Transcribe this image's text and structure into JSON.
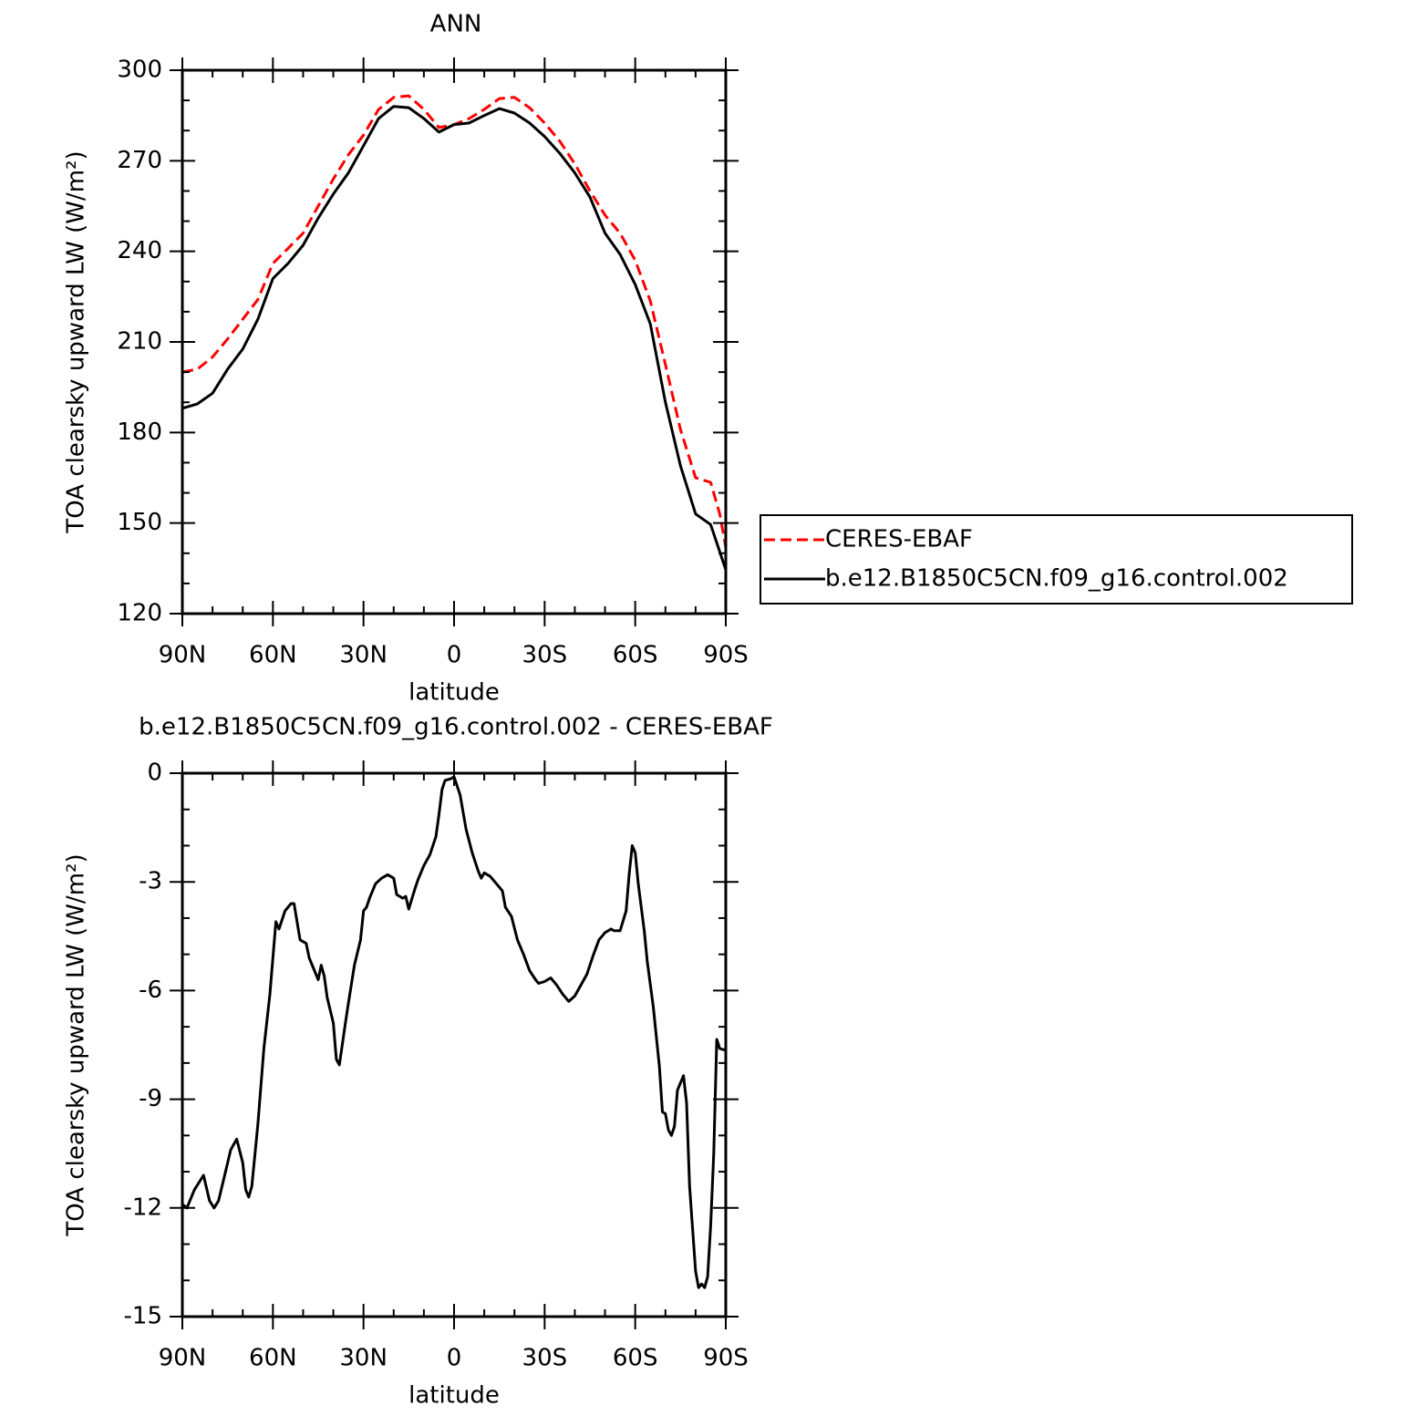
{
  "chart_data": [
    {
      "type": "line",
      "title": "ANN",
      "xlabel": "latitude",
      "ylabel": "TOA clearsky upward LW (W/m²)",
      "x": [
        90,
        85,
        80,
        75,
        70,
        65,
        60,
        55,
        50,
        45,
        40,
        35,
        30,
        25,
        20,
        15,
        10,
        5,
        0,
        -5,
        -10,
        -15,
        -20,
        -25,
        -30,
        -35,
        -40,
        -45,
        -50,
        -55,
        -60,
        -65,
        -70,
        -75,
        -80,
        -85,
        -88,
        -90
      ],
      "series": [
        {
          "name": "CERES-EBAF",
          "color": "#ff0000",
          "style": "dashed",
          "values": [
            200,
            201,
            205,
            211,
            217.5,
            224,
            236,
            241,
            246,
            255,
            264,
            272,
            278.5,
            287,
            291,
            291.5,
            287,
            281,
            282,
            284,
            287,
            290.6,
            291,
            287.6,
            282.5,
            276.5,
            269,
            260,
            252,
            246,
            237,
            223.6,
            202.5,
            181,
            165,
            163.5,
            153,
            142
          ]
        },
        {
          "name": "b.e12.B1850C5CN.f09_g16.control.002",
          "color": "#000000",
          "style": "solid",
          "values": [
            188,
            189.5,
            193,
            201,
            207.6,
            217.5,
            231,
            236,
            242,
            251,
            259,
            266,
            275,
            284,
            288,
            287.6,
            284,
            279.5,
            282,
            282.5,
            285,
            287.3,
            285.8,
            282.5,
            278,
            272.5,
            266,
            258,
            246,
            239,
            229,
            216,
            190,
            169,
            153,
            149.5,
            140.5,
            134.5
          ]
        }
      ],
      "xlim": [
        90,
        -90
      ],
      "xticks": [
        {
          "value": 90,
          "label": "90N"
        },
        {
          "value": 60,
          "label": "60N"
        },
        {
          "value": 30,
          "label": "30N"
        },
        0,
        {
          "value": -30,
          "label": "30S"
        },
        {
          "value": -60,
          "label": "60S"
        },
        {
          "value": -90,
          "label": "90S"
        }
      ],
      "minor_xticks": [
        80,
        70,
        50,
        40,
        20,
        10,
        -10,
        -20,
        -40,
        -50,
        -70,
        -80
      ],
      "ylim": [
        120,
        300
      ],
      "yticks": [
        120,
        150,
        180,
        210,
        240,
        270,
        300
      ],
      "minor_yticks": [
        130,
        140,
        160,
        170,
        190,
        200,
        220,
        230,
        250,
        260,
        280,
        290
      ],
      "legend": "outside-right"
    },
    {
      "type": "line",
      "title": "b.e12.B1850C5CN.f09_g16.control.002 - CERES-EBAF",
      "xlabel": "latitude",
      "ylabel": "TOA clearsky upward LW (W/m²)",
      "x": [
        90,
        88.5,
        86,
        83,
        81,
        79.5,
        78,
        76,
        74,
        72,
        70,
        69,
        68,
        67,
        65,
        63,
        61,
        59,
        58,
        56,
        55,
        54,
        53,
        52,
        51,
        49,
        48,
        46,
        45,
        44,
        43,
        42,
        40,
        39,
        38,
        36,
        35,
        33,
        31,
        30,
        29,
        28,
        26,
        24,
        22,
        20,
        19,
        17,
        16,
        15,
        13,
        12,
        10,
        8,
        6,
        5,
        4,
        3,
        1,
        0,
        -1,
        -2,
        -4,
        -6,
        -8,
        -9,
        -10,
        -12,
        -14,
        -16,
        -17,
        -19,
        -21,
        -23,
        -25,
        -27,
        -28,
        -30,
        -31,
        -32,
        -34,
        -36,
        -38,
        -40,
        -42,
        -44,
        -46,
        -48,
        -50,
        -52,
        -53,
        -55,
        -57,
        -58,
        -59,
        -60,
        -61,
        -63,
        -64,
        -66,
        -68,
        -69,
        -70,
        -71,
        -72,
        -73,
        -74,
        -76,
        -77,
        -78,
        -80,
        -81,
        -82,
        -83,
        -84,
        -85,
        -86,
        -87,
        -88,
        -90
      ],
      "series": [
        {
          "color": "#000000",
          "style": "solid",
          "values": [
            -11.9,
            -12,
            -11.5,
            -11.1,
            -11.8,
            -12,
            -11.8,
            -11.1,
            -10.4,
            -10.1,
            -10.75,
            -11.5,
            -11.7,
            -11.4,
            -9.7,
            -7.6,
            -6.1,
            -4.1,
            -4.3,
            -3.8,
            -3.7,
            -3.6,
            -3.6,
            -4.1,
            -4.6,
            -4.7,
            -5.1,
            -5.5,
            -5.7,
            -5.3,
            -5.6,
            -6.2,
            -6.9,
            -7.9,
            -8.05,
            -6.9,
            -6.35,
            -5.3,
            -4.6,
            -3.8,
            -3.7,
            -3.45,
            -3.05,
            -2.9,
            -2.8,
            -2.9,
            -3.35,
            -3.45,
            -3.4,
            -3.75,
            -3.2,
            -2.95,
            -2.55,
            -2.25,
            -1.75,
            -1.15,
            -0.45,
            -0.2,
            -0.15,
            -0.1,
            -0.35,
            -0.6,
            -1.55,
            -2.2,
            -2.7,
            -2.9,
            -2.75,
            -2.85,
            -3.05,
            -3.25,
            -3.7,
            -3.95,
            -4.6,
            -5,
            -5.45,
            -5.7,
            -5.8,
            -5.75,
            -5.7,
            -5.65,
            -5.85,
            -6.1,
            -6.3,
            -6.15,
            -5.85,
            -5.55,
            -5.05,
            -4.6,
            -4.4,
            -4.3,
            -4.35,
            -4.35,
            -3.8,
            -2.8,
            -2,
            -2.2,
            -3.05,
            -4.35,
            -5.2,
            -6.45,
            -8.1,
            -9.35,
            -9.4,
            -9.85,
            -10,
            -9.75,
            -8.75,
            -8.35,
            -9.1,
            -11.4,
            -13.75,
            -14.2,
            -14.1,
            -14.2,
            -13.9,
            -12.5,
            -10.5,
            -7.35,
            -7.6,
            -7.65
          ]
        }
      ],
      "xlim": [
        90,
        -90
      ],
      "xticks": [
        {
          "value": 90,
          "label": "90N"
        },
        {
          "value": 60,
          "label": "60N"
        },
        {
          "value": 30,
          "label": "30N"
        },
        0,
        {
          "value": -30,
          "label": "30S"
        },
        {
          "value": -60,
          "label": "60S"
        },
        {
          "value": -90,
          "label": "90S"
        }
      ],
      "minor_xticks": [
        80,
        70,
        50,
        40,
        20,
        10,
        -10,
        -20,
        -40,
        -50,
        -70,
        -80
      ],
      "ylim": [
        -15,
        0
      ],
      "yticks": [
        -15,
        -12,
        -9,
        -6,
        -3,
        0
      ],
      "minor_yticks": [
        -1,
        -2,
        -4,
        -5,
        -7,
        -8,
        -10,
        -11,
        -13,
        -14
      ]
    }
  ]
}
